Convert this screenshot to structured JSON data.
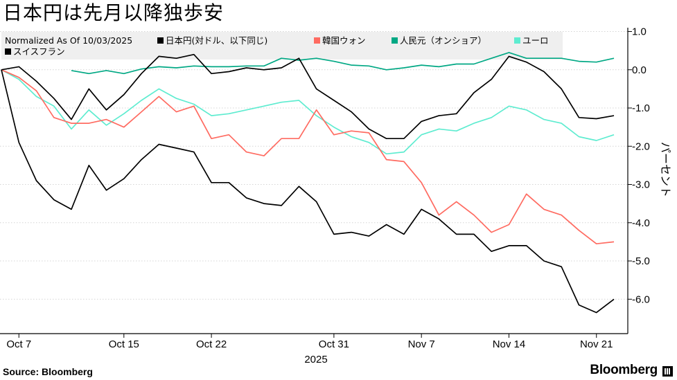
{
  "title": "日本円は先月以降独歩安",
  "source": "Source: Bloomberg",
  "brand": "Bloomberg",
  "chart_data": {
    "type": "line",
    "legend_title": "Normalized As Of 10/03/2025",
    "ylabel": "パーセント",
    "xlabel": "2025",
    "ylim": [
      -6.9,
      1.1
    ],
    "y_ticks": [
      1,
      0,
      -1,
      -2,
      -3,
      -4,
      -5,
      -6
    ],
    "y_tick_labels": [
      "1.0",
      "0.0",
      "-1.0",
      "-2.0",
      "-3.0",
      "-4.0",
      "-5.0",
      "-6.0"
    ],
    "x_ticks": [
      {
        "index": 1,
        "label": "Oct 7"
      },
      {
        "index": 7,
        "label": "Oct 15"
      },
      {
        "index": 12,
        "label": "Oct 22"
      },
      {
        "index": 19,
        "label": "Oct 31"
      },
      {
        "index": 24,
        "label": "Nov 7"
      },
      {
        "index": 29,
        "label": "Nov 14"
      },
      {
        "index": 34,
        "label": "Nov 21"
      }
    ],
    "x": [
      "Oct 3",
      "Oct 6",
      "Oct 7",
      "Oct 8",
      "Oct 9",
      "Oct 10",
      "Oct 13",
      "Oct 14",
      "Oct 15",
      "Oct 16",
      "Oct 17",
      "Oct 20",
      "Oct 21",
      "Oct 22",
      "Oct 23",
      "Oct 24",
      "Oct 27",
      "Oct 28",
      "Oct 29",
      "Oct 30",
      "Oct 31",
      "Nov 3",
      "Nov 4",
      "Nov 5",
      "Nov 6",
      "Nov 7",
      "Nov 10",
      "Nov 11",
      "Nov 12",
      "Nov 13",
      "Nov 14",
      "Nov 17",
      "Nov 18",
      "Nov 19",
      "Nov 20",
      "Nov 21"
    ],
    "series": [
      {
        "name": "日本円(対ドル、以下同じ)",
        "color": "#000000",
        "values": [
          0,
          0.08,
          -0.3,
          -0.75,
          -1.3,
          -0.5,
          -1.05,
          -0.65,
          -0.1,
          0.35,
          0.3,
          0.4,
          -0.1,
          -0.05,
          0.05,
          0,
          0.05,
          0.3,
          -0.5,
          -0.8,
          -1.1,
          -1.55,
          -1.8,
          -1.8,
          -1.35,
          -1.2,
          -1.15,
          -0.6,
          -0.25,
          0.35,
          0.2,
          -0.05,
          -0.5,
          -1.25,
          -1.28,
          -1.2
        ]
      },
      {
        "name": "韓国ウォン",
        "color": "#ff6b61",
        "values": [
          0,
          -0.2,
          -0.55,
          -1.25,
          -1.4,
          -1.4,
          -1.3,
          -1.5,
          -1.1,
          -0.7,
          -1.1,
          -0.95,
          -1.8,
          -1.7,
          -2.15,
          -2.25,
          -1.8,
          -1.8,
          -1.05,
          -1.7,
          -1.6,
          -1.65,
          -2.35,
          -2.4,
          -2.95,
          -3.8,
          -3.45,
          -3.8,
          -4.25,
          -4.05,
          -3.25,
          -3.65,
          -3.8,
          -4.2,
          -4.55,
          -4.5
        ]
      },
      {
        "name": "人民元（オンショア）",
        "color": "#00a884",
        "values": [
          null,
          null,
          null,
          null,
          -0.02,
          -0.1,
          -0.02,
          -0.1,
          0.02,
          0.08,
          0.05,
          0.1,
          0.08,
          0.08,
          0.1,
          0.1,
          0.3,
          0.25,
          0.3,
          0.22,
          0.12,
          0.1,
          0.0,
          0.05,
          0.12,
          0.08,
          0.15,
          0.15,
          0.3,
          0.45,
          0.3,
          0.3,
          0.3,
          0.22,
          0.2,
          0.3
        ]
      },
      {
        "name": "ユーロ",
        "color": "#5eecd0",
        "values": [
          0,
          -0.25,
          -0.7,
          -0.95,
          -1.55,
          -1.05,
          -1.45,
          -1.15,
          -0.8,
          -0.5,
          -0.75,
          -0.9,
          -1.2,
          -1.15,
          -1.05,
          -0.95,
          -0.85,
          -0.8,
          -1.2,
          -1.5,
          -1.75,
          -1.9,
          -2.2,
          -2.15,
          -1.7,
          -1.55,
          -1.6,
          -1.4,
          -1.25,
          -0.95,
          -1.05,
          -1.3,
          -1.4,
          -1.75,
          -1.85,
          -1.7
        ]
      },
      {
        "name": "スイスフラン",
        "color": "#000000",
        "values": [
          0,
          -1.9,
          -2.9,
          -3.4,
          -3.65,
          -2.5,
          -3.15,
          -2.85,
          -2.35,
          -1.95,
          -2.05,
          -2.15,
          -2.95,
          -2.95,
          -3.35,
          -3.5,
          -3.55,
          -3.05,
          -3.45,
          -4.3,
          -4.25,
          -4.35,
          -4.05,
          -4.3,
          -3.65,
          -3.9,
          -4.3,
          -4.3,
          -4.75,
          -4.6,
          -4.6,
          -5.0,
          -5.15,
          -6.15,
          -6.35,
          -6.0
        ]
      }
    ]
  }
}
